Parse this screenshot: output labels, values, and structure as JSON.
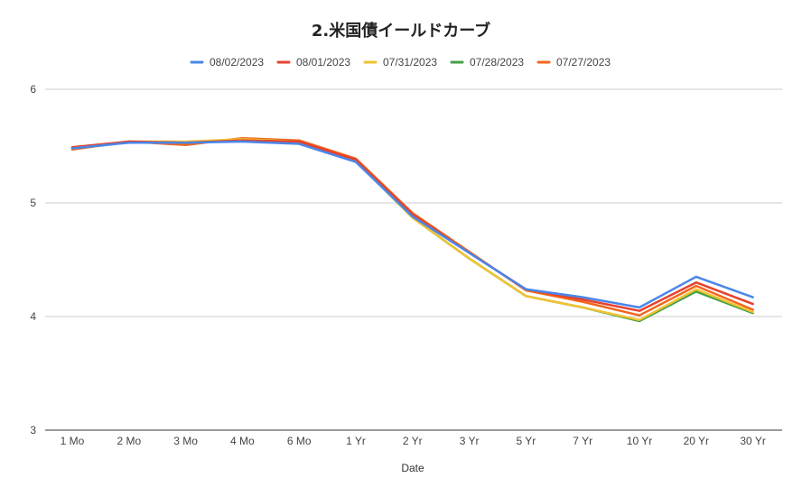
{
  "chart_data": {
    "type": "line",
    "title": "2.米国債イールドカーブ",
    "xlabel": "Date",
    "ylabel": "",
    "ylim": [
      3,
      6
    ],
    "yticks": [
      "3",
      "4",
      "5",
      "6"
    ],
    "grid": true,
    "legend_position": "top",
    "categories": [
      "1 Mo",
      "2 Mo",
      "3 Mo",
      "4 Mo",
      "6 Mo",
      "1 Yr",
      "2 Yr",
      "3 Yr",
      "5 Yr",
      "7 Yr",
      "10 Yr",
      "20 Yr",
      "30 Yr"
    ],
    "series": [
      {
        "name": "08/02/2023",
        "color": "#4a86e8",
        "values": [
          5.48,
          5.53,
          5.53,
          5.54,
          5.52,
          5.36,
          4.88,
          4.56,
          4.24,
          4.17,
          4.08,
          4.35,
          4.17
        ]
      },
      {
        "name": "08/01/2023",
        "color": "#e6412d",
        "values": [
          5.49,
          5.54,
          5.53,
          5.55,
          5.54,
          5.38,
          4.9,
          4.56,
          4.24,
          4.15,
          4.05,
          4.3,
          4.11
        ]
      },
      {
        "name": "07/31/2023",
        "color": "#f1c232",
        "values": [
          5.49,
          5.54,
          5.54,
          5.56,
          5.54,
          5.37,
          4.87,
          4.51,
          4.18,
          4.08,
          3.97,
          4.24,
          4.04
        ]
      },
      {
        "name": "07/28/2023",
        "color": "#43a047",
        "values": [
          5.48,
          5.54,
          5.53,
          5.56,
          5.54,
          5.37,
          4.87,
          4.51,
          4.18,
          4.08,
          3.96,
          4.22,
          4.03
        ]
      },
      {
        "name": "07/27/2023",
        "color": "#f2661d",
        "values": [
          5.47,
          5.54,
          5.51,
          5.57,
          5.55,
          5.39,
          4.91,
          4.57,
          4.23,
          4.13,
          4.01,
          4.27,
          4.06
        ]
      }
    ]
  }
}
